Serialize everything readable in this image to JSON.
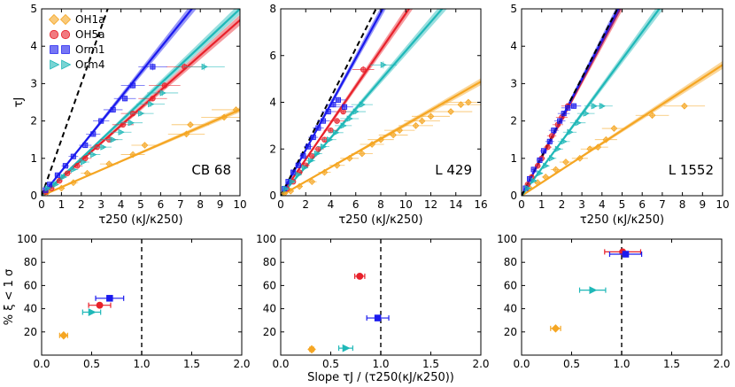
{
  "figure": {
    "bottom_xlabel": "Slope τJ / (τ250(κJ/κ250))",
    "bottom_ylabel": "% ξ < 1 σ"
  },
  "legend": [
    {
      "key": "OH1a",
      "label": "OH1a",
      "marker": "diamond",
      "color": "#f5a623"
    },
    {
      "key": "OH5a",
      "label": "OH5a",
      "marker": "circle",
      "color": "#e8212b"
    },
    {
      "key": "Orm1",
      "label": "Orm1",
      "marker": "square",
      "color": "#1a1aee"
    },
    {
      "key": "Orm4",
      "label": "Orm4",
      "marker": "triangle",
      "color": "#1fb8b8"
    }
  ],
  "colors": {
    "OH1a": "#f5a623",
    "OH5a": "#e8212b",
    "Orm1": "#1a1aee",
    "Orm4": "#1fb8b8",
    "reference": "#000000"
  },
  "chart_data": [
    {
      "type": "scatter",
      "panel": "top",
      "title": "CB 68",
      "xlabel": "τ250 (κJ/κ250)",
      "ylabel": "τJ",
      "xlim": [
        0,
        10
      ],
      "ylim": [
        0,
        5
      ],
      "xticks": [
        "0",
        "1",
        "2",
        "3",
        "4",
        "5",
        "6",
        "7",
        "8",
        "9",
        "10"
      ],
      "yticks": [
        "0",
        "1",
        "2",
        "3",
        "4",
        "5"
      ],
      "reference_slope": 1.5,
      "lines": [
        {
          "name": "OH1a",
          "slope": 0.23
        },
        {
          "name": "OH5a",
          "slope": 0.47
        },
        {
          "name": "Orm1",
          "slope": 0.66
        },
        {
          "name": "Orm4",
          "slope": 0.5
        }
      ],
      "series": [
        {
          "name": "OH1a",
          "x": [
            0.3,
            1.0,
            1.6,
            2.3,
            3.4,
            4.6,
            5.2,
            7.3,
            7.5,
            9.2,
            9.8
          ],
          "y": [
            0.1,
            0.2,
            0.35,
            0.6,
            0.85,
            1.1,
            1.35,
            1.65,
            1.9,
            2.1,
            2.3
          ]
        },
        {
          "name": "OH5a",
          "x": [
            0.2,
            0.5,
            0.9,
            1.3,
            1.8,
            2.2,
            2.8,
            3.4,
            4.1,
            4.6,
            5.6,
            6.2,
            7.2
          ],
          "y": [
            0.1,
            0.2,
            0.4,
            0.6,
            0.8,
            1.0,
            1.3,
            1.5,
            1.9,
            2.2,
            2.6,
            2.95,
            3.45
          ]
        },
        {
          "name": "Orm1",
          "x": [
            0.2,
            0.4,
            0.8,
            1.2,
            1.6,
            2.2,
            2.6,
            3.0,
            3.6,
            4.2,
            4.6,
            5.6
          ],
          "y": [
            0.15,
            0.3,
            0.55,
            0.8,
            1.05,
            1.35,
            1.65,
            2.0,
            2.3,
            2.6,
            2.95,
            3.45
          ]
        },
        {
          "name": "Orm4",
          "x": [
            0.3,
            0.7,
            1.1,
            1.6,
            2.1,
            2.6,
            3.1,
            3.6,
            4.0,
            4.5,
            5.0,
            5.5,
            6.1,
            8.2
          ],
          "y": [
            0.2,
            0.3,
            0.5,
            0.7,
            0.9,
            1.1,
            1.3,
            1.5,
            1.7,
            1.95,
            2.2,
            2.45,
            2.75,
            3.45
          ]
        }
      ]
    },
    {
      "type": "scatter",
      "panel": "top",
      "title": "L 429",
      "xlabel": "τ250 (κJ/κ250)",
      "ylabel": "",
      "xlim": [
        0,
        16
      ],
      "ylim": [
        0,
        8
      ],
      "xticks": [
        "0",
        "2",
        "4",
        "6",
        "8",
        "10",
        "12",
        "14",
        "16"
      ],
      "yticks": [
        "0",
        "2",
        "4",
        "6",
        "8"
      ],
      "reference_slope": 1.05,
      "lines": [
        {
          "name": "OH1a",
          "slope": 0.305
        },
        {
          "name": "OH5a",
          "slope": 0.78
        },
        {
          "name": "Orm1",
          "slope": 0.98
        },
        {
          "name": "Orm4",
          "slope": 0.62
        }
      ],
      "series": [
        {
          "name": "OH1a",
          "x": [
            0.3,
            0.8,
            1.5,
            2.5,
            3.5,
            4.5,
            5.5,
            6.5,
            7.3,
            8.0,
            9.0,
            9.5,
            10.8,
            11.3,
            12.0,
            13.6,
            14.4,
            15.0
          ],
          "y": [
            0.1,
            0.2,
            0.4,
            0.6,
            1.0,
            1.3,
            1.6,
            1.8,
            2.2,
            2.4,
            2.6,
            2.8,
            3.0,
            3.2,
            3.4,
            3.6,
            3.9,
            4.0
          ]
        },
        {
          "name": "OH5a",
          "x": [
            0.5,
            1.0,
            1.5,
            2.0,
            2.5,
            3.0,
            3.5,
            4.0,
            4.5,
            5.0,
            6.6
          ],
          "y": [
            0.3,
            0.6,
            1.0,
            1.3,
            1.7,
            2.0,
            2.4,
            2.8,
            3.2,
            3.6,
            5.4
          ]
        },
        {
          "name": "Orm1",
          "x": [
            0.3,
            0.6,
            1.0,
            1.4,
            1.8,
            2.2,
            2.6,
            3.0,
            3.4,
            3.8,
            4.2,
            4.6,
            5.1
          ],
          "y": [
            0.3,
            0.6,
            1.0,
            1.3,
            1.7,
            2.1,
            2.5,
            2.9,
            3.2,
            3.6,
            3.9,
            4.1,
            3.8
          ]
        },
        {
          "name": "Orm4",
          "x": [
            0.4,
            0.9,
            1.4,
            1.9,
            2.4,
            2.9,
            3.4,
            3.9,
            4.4,
            5.0,
            5.5,
            6.0,
            6.5,
            8.2
          ],
          "y": [
            0.3,
            0.6,
            0.9,
            1.2,
            1.5,
            1.8,
            2.1,
            2.4,
            2.7,
            3.0,
            3.3,
            3.6,
            3.9,
            5.6
          ]
        }
      ]
    },
    {
      "type": "scatter",
      "panel": "top",
      "title": "L 1552",
      "xlabel": "τ250 (κJ/κ250)",
      "ylabel": "",
      "xlim": [
        0,
        10
      ],
      "ylim": [
        0,
        5
      ],
      "xticks": [
        "0",
        "1",
        "2",
        "3",
        "4",
        "5",
        "6",
        "7",
        "8",
        "9",
        "10"
      ],
      "yticks": [
        "0",
        "1",
        "2",
        "3",
        "4",
        "5"
      ],
      "reference_slope": 1.05,
      "lines": [
        {
          "name": "OH1a",
          "slope": 0.35
        },
        {
          "name": "OH5a",
          "slope": 1.02
        },
        {
          "name": "Orm1",
          "slope": 1.04
        },
        {
          "name": "Orm4",
          "slope": 0.73
        }
      ],
      "series": [
        {
          "name": "OH1a",
          "x": [
            0.4,
            0.8,
            1.2,
            1.7,
            2.2,
            2.9,
            3.4,
            3.8,
            4.2,
            4.6,
            6.5,
            8.1
          ],
          "y": [
            0.2,
            0.35,
            0.5,
            0.7,
            0.9,
            1.0,
            1.25,
            1.3,
            1.5,
            1.8,
            2.15,
            2.4
          ]
        },
        {
          "name": "OH5a",
          "x": [
            0.3,
            0.5,
            0.8,
            1.0,
            1.3,
            1.5,
            1.8,
            2.0,
            2.3
          ],
          "y": [
            0.3,
            0.5,
            0.8,
            1.0,
            1.3,
            1.6,
            1.9,
            2.1,
            2.4
          ]
        },
        {
          "name": "Orm1",
          "x": [
            0.2,
            0.4,
            0.6,
            0.9,
            1.1,
            1.4,
            1.6,
            1.9,
            2.1,
            2.3,
            2.6
          ],
          "y": [
            0.2,
            0.45,
            0.7,
            0.95,
            1.2,
            1.45,
            1.75,
            2.0,
            2.2,
            2.35,
            2.4
          ]
        },
        {
          "name": "Orm4",
          "x": [
            0.3,
            0.6,
            0.9,
            1.2,
            1.5,
            1.8,
            2.1,
            2.4,
            2.8,
            3.2,
            3.6,
            4.0
          ],
          "y": [
            0.2,
            0.4,
            0.6,
            0.8,
            1.0,
            1.25,
            1.45,
            1.7,
            1.95,
            2.2,
            2.4,
            2.4
          ]
        }
      ]
    },
    {
      "type": "scatter",
      "panel": "bottom",
      "title": "",
      "xlabel": "",
      "ylabel": "% ξ < 1 σ",
      "xlim": [
        0,
        2
      ],
      "ylim": [
        0,
        100
      ],
      "xticks": [
        "0.0",
        "0.5",
        "1.0",
        "1.5",
        "2.0"
      ],
      "yticks": [
        "20",
        "40",
        "60",
        "80",
        "100"
      ],
      "vline": 1.0,
      "series": [
        {
          "name": "OH1a",
          "x": [
            0.22
          ],
          "xerr": [
            0.04
          ],
          "y": [
            17
          ]
        },
        {
          "name": "OH5a",
          "x": [
            0.58
          ],
          "xerr": [
            0.11
          ],
          "y": [
            43
          ]
        },
        {
          "name": "Orm1",
          "x": [
            0.68
          ],
          "xerr": [
            0.14
          ],
          "y": [
            49
          ]
        },
        {
          "name": "Orm4",
          "x": [
            0.5
          ],
          "xerr": [
            0.09
          ],
          "y": [
            37
          ]
        }
      ]
    },
    {
      "type": "scatter",
      "panel": "bottom",
      "title": "",
      "xlabel": "Slope τJ / (τ250(κJ/κ250))",
      "ylabel": "",
      "xlim": [
        0,
        2
      ],
      "ylim": [
        0,
        100
      ],
      "xticks": [
        "0.0",
        "0.5",
        "1.0",
        "1.5",
        "2.0"
      ],
      "yticks": [
        "20",
        "40",
        "60",
        "80",
        "100"
      ],
      "vline": 1.0,
      "series": [
        {
          "name": "OH1a",
          "x": [
            0.31
          ],
          "xerr": [
            0.02
          ],
          "y": [
            5
          ]
        },
        {
          "name": "OH5a",
          "x": [
            0.79
          ],
          "xerr": [
            0.05
          ],
          "y": [
            68
          ]
        },
        {
          "name": "Orm1",
          "x": [
            0.97
          ],
          "xerr": [
            0.11
          ],
          "y": [
            32
          ]
        },
        {
          "name": "Orm4",
          "x": [
            0.65
          ],
          "xerr": [
            0.07
          ],
          "y": [
            6
          ]
        }
      ]
    },
    {
      "type": "scatter",
      "panel": "bottom",
      "title": "",
      "xlabel": "",
      "ylabel": "",
      "xlim": [
        0,
        2
      ],
      "ylim": [
        0,
        100
      ],
      "xticks": [
        "0.0",
        "0.5",
        "1.0",
        "1.5",
        "2.0"
      ],
      "yticks": [
        "20",
        "40",
        "60",
        "80",
        "100"
      ],
      "vline": 1.0,
      "series": [
        {
          "name": "OH1a",
          "x": [
            0.34
          ],
          "xerr": [
            0.05
          ],
          "y": [
            23
          ]
        },
        {
          "name": "OH5a",
          "x": [
            1.01
          ],
          "xerr": [
            0.18
          ],
          "y": [
            89
          ]
        },
        {
          "name": "Orm1",
          "x": [
            1.04
          ],
          "xerr": [
            0.16
          ],
          "y": [
            87
          ]
        },
        {
          "name": "Orm4",
          "x": [
            0.71
          ],
          "xerr": [
            0.13
          ],
          "y": [
            56
          ]
        }
      ]
    }
  ]
}
